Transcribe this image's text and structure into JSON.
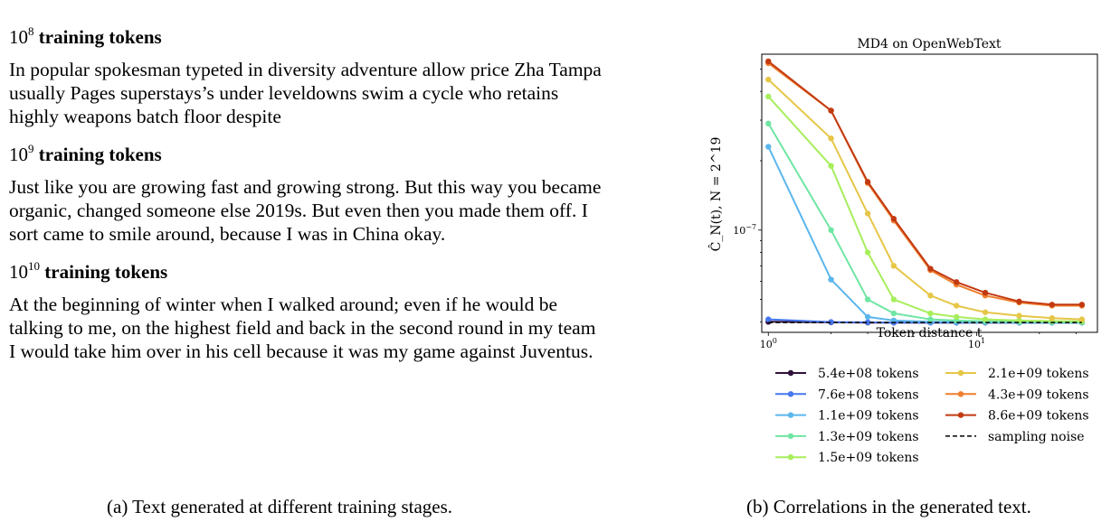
{
  "left": {
    "stages": [
      {
        "base": "10",
        "exp": "8",
        "heading_label": "training tokens",
        "text": "In popular spokesman typeted in diversity adventure allow price Zha Tampa usually Pages superstays’s under leveldowns swim a cycle who retains highly weapons batch floor despite"
      },
      {
        "base": "10",
        "exp": "9",
        "heading_label": "training tokens",
        "text": "Just like you are growing fast and growing strong. But this way you became organic, changed someone else 2019s. But even then you made them off. I sort came to smile around, because I was in China okay."
      },
      {
        "base": "10",
        "exp": "10",
        "heading_label": "training tokens",
        "text": "At the beginning of winter when I walked around; even if he would be talking to me, on the highest field and back in the second round in my team I would take him over in his cell because it was my game against Juventus."
      }
    ],
    "caption": "(a) Text generated at different training stages."
  },
  "right": {
    "caption": "(b) Correlations in the generated text."
  },
  "chart_data": {
    "type": "line",
    "title": "MD4 on OpenWebText",
    "xlabel": "Token distance t",
    "ylabel": "Ĉ_N(t), N = 2^19",
    "xscale": "log",
    "yscale": "log",
    "xlim": [
      0.93,
      38
    ],
    "ylim": [
      3.6e-08,
      5.8e-07
    ],
    "x_ticks": [
      {
        "value": 1,
        "base": "10",
        "exp": "0"
      },
      {
        "value": 10,
        "base": "10",
        "exp": "1"
      }
    ],
    "y_ticks": [
      {
        "value": 1e-07,
        "base": "10",
        "exp": "−7"
      }
    ],
    "x": [
      1,
      2,
      3,
      4,
      6,
      8,
      11,
      16,
      23,
      32
    ],
    "series": [
      {
        "name": "5.4e+08 tokens",
        "color": "#30123b",
        "values": [
          4e-08,
          3.98e-08,
          3.97e-08,
          3.97e-08,
          3.97e-08,
          3.97e-08,
          3.97e-08,
          3.97e-08,
          3.97e-08,
          3.97e-08
        ]
      },
      {
        "name": "7.6e+08 tokens",
        "color": "#4777ef",
        "values": [
          4.1e-08,
          3.99e-08,
          3.98e-08,
          3.97e-08,
          3.97e-08,
          3.97e-08,
          3.97e-08,
          3.97e-08,
          3.97e-08,
          3.97e-08
        ]
      },
      {
        "name": "1.1e+09 tokens",
        "color": "#5bb6ec",
        "values": [
          2.3e-07,
          6.1e-08,
          4.2e-08,
          4.05e-08,
          4e-08,
          3.99e-08,
          3.98e-08,
          3.97e-08,
          3.97e-08,
          3.97e-08
        ]
      },
      {
        "name": "1.3e+09 tokens",
        "color": "#6fe6a3",
        "values": [
          2.9e-07,
          1e-07,
          5e-08,
          4.35e-08,
          4.1e-08,
          4.05e-08,
          4.02e-08,
          4e-08,
          3.99e-08,
          3.98e-08
        ]
      },
      {
        "name": "1.5e+09 tokens",
        "color": "#a7ee5c",
        "values": [
          3.8e-07,
          1.9e-07,
          8e-08,
          5e-08,
          4.35e-08,
          4.2e-08,
          4.1e-08,
          4.05e-08,
          4.03e-08,
          4.02e-08
        ]
      },
      {
        "name": "2.1e+09 tokens",
        "color": "#e6c647",
        "values": [
          4.5e-07,
          2.5e-07,
          1.18e-07,
          7e-08,
          5.2e-08,
          4.7e-08,
          4.4e-08,
          4.25e-08,
          4.15e-08,
          4.1e-08
        ]
      },
      {
        "name": "4.3e+09 tokens",
        "color": "#ef7f2e",
        "values": [
          5.3e-07,
          3.3e-07,
          1.6e-07,
          1.1e-07,
          6.7e-08,
          5.8e-08,
          5.2e-08,
          4.85e-08,
          4.7e-08,
          4.7e-08
        ]
      },
      {
        "name": "8.6e+09 tokens",
        "color": "#c23a11",
        "values": [
          5.4e-07,
          3.3e-07,
          1.62e-07,
          1.12e-07,
          6.8e-08,
          5.95e-08,
          5.35e-08,
          4.9e-08,
          4.75e-08,
          4.75e-08
        ]
      }
    ],
    "reference_line": {
      "name": "sampling noise",
      "value": 3.97e-08,
      "style": "dashed",
      "color": "#000000"
    },
    "legend_position": "below"
  }
}
